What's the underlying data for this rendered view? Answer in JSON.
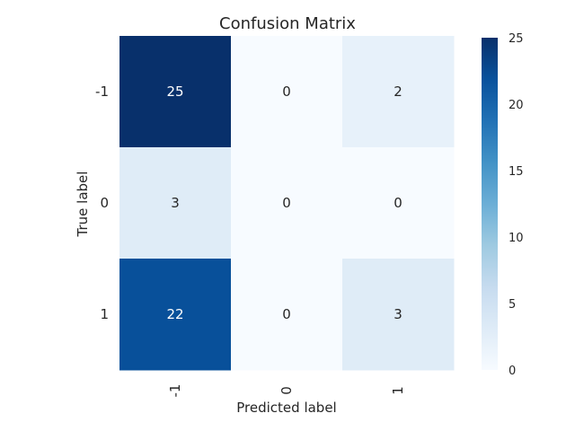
{
  "chart_data": {
    "type": "heatmap",
    "title": "Confusion Matrix",
    "xlabel": "Predicted label",
    "ylabel": "True label",
    "x_categories": [
      "-1",
      "0",
      "1"
    ],
    "y_categories": [
      "-1",
      "0",
      "1"
    ],
    "values": [
      [
        25,
        0,
        2
      ],
      [
        3,
        0,
        0
      ],
      [
        22,
        0,
        3
      ]
    ],
    "colorbar": {
      "range": [
        0,
        25
      ],
      "ticks": [
        0,
        5,
        10,
        15,
        20,
        25
      ],
      "colormap": "Blues"
    },
    "colors": {
      "low": "#f7fbff",
      "high": "#08306b",
      "text_dark": "#262626",
      "text_light": "#ffffff"
    }
  }
}
